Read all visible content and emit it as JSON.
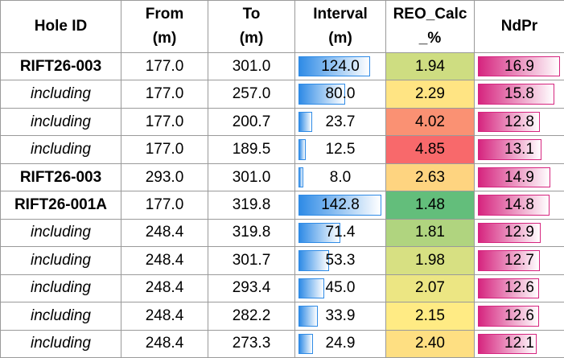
{
  "table": {
    "header": [
      "Hole ID",
      "From (m)",
      "To (m)",
      "Interval (m)",
      "REO_Calc _%",
      "NdPr"
    ],
    "rows": [
      [
        "RIFT26-003",
        "177.0",
        "301.0",
        "124.0",
        "1.94",
        "16.9"
      ],
      [
        "including",
        "177.0",
        "257.0",
        "80.0",
        "2.29",
        "15.8"
      ],
      [
        "including",
        "177.0",
        "200.7",
        "23.7",
        "4.02",
        "12.8"
      ],
      [
        "including",
        "177.0",
        "189.5",
        "12.5",
        "4.85",
        "13.1"
      ],
      [
        "RIFT26-003",
        "293.0",
        "301.0",
        "8.0",
        "2.63",
        "14.9"
      ],
      [
        "RIFT26-001A",
        "177.0",
        "319.8",
        "142.8",
        "1.48",
        "14.8"
      ],
      [
        "including",
        "248.4",
        "319.8",
        "71.4",
        "1.81",
        "12.9"
      ],
      [
        "including",
        "248.4",
        "301.7",
        "53.3",
        "1.98",
        "12.7"
      ],
      [
        "including",
        "248.4",
        "293.4",
        "45.0",
        "2.07",
        "12.6"
      ],
      [
        "including",
        "248.4",
        "282.2",
        "33.9",
        "2.15",
        "12.6"
      ],
      [
        "including",
        "248.4",
        "273.3",
        "24.9",
        "2.40",
        "12.1"
      ]
    ],
    "interval_bar_color": "#2f8be6",
    "ndpr_bar_color": "#d6257f",
    "reo_scale_colors": [
      "#63be7b",
      "#ffeb84",
      "#f8696b"
    ]
  }
}
